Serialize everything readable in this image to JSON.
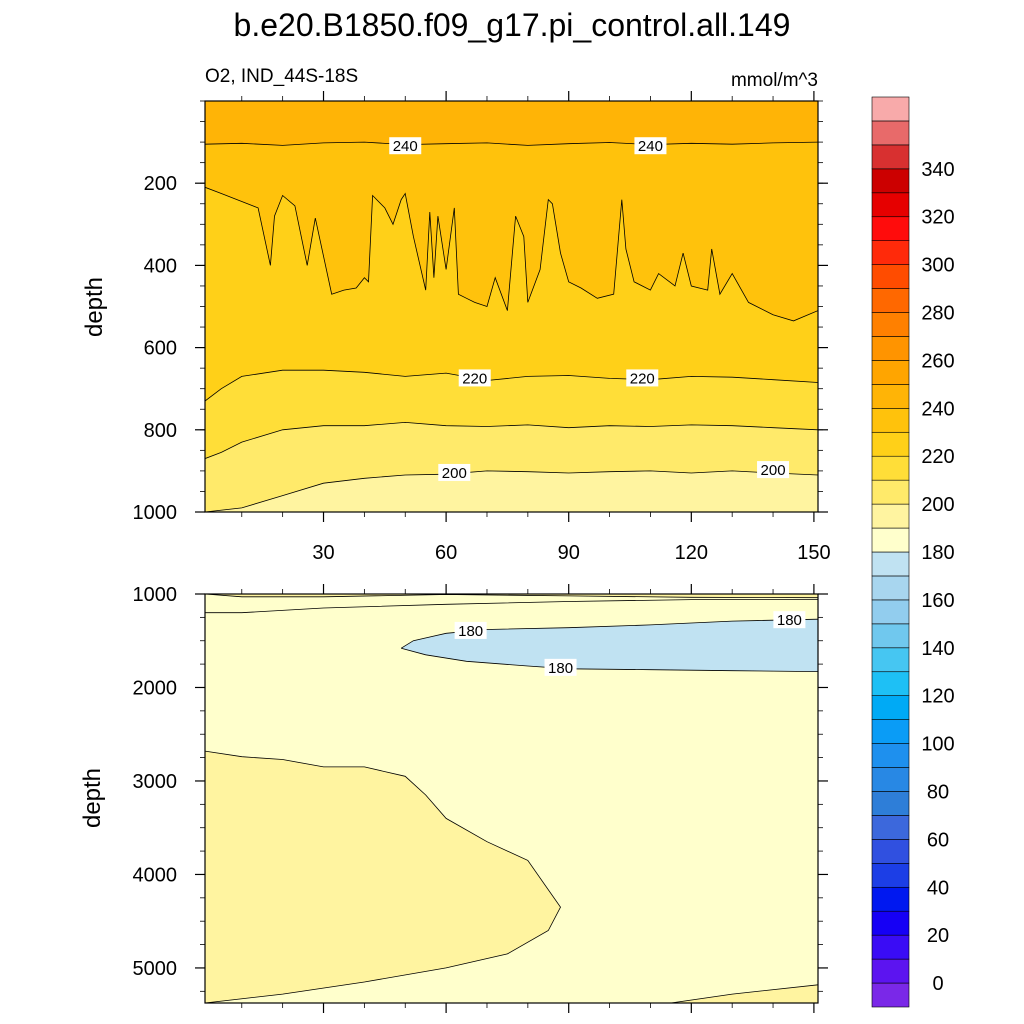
{
  "chart_data": {
    "type": "contour",
    "title": "b.e20.B1850.f09_g17.pi_control.all.149",
    "subtitle_left": "O2, IND_44S-18S",
    "subtitle_right": "mmol/m^3",
    "panels": [
      {
        "name": "upper",
        "ylabel": "depth",
        "xlim": [
          1,
          151
        ],
        "ylim": [
          1000,
          0
        ],
        "yticks": [
          200,
          400,
          600,
          800,
          1000
        ],
        "xticks": [
          30,
          60,
          90,
          120,
          150
        ],
        "contours": [
          {
            "level": 240,
            "x": [
              1,
              10,
              20,
              30,
              40,
              50,
              60,
              70,
              80,
              90,
              100,
              110,
              120,
              130,
              140,
              151
            ],
            "depth": [
              105,
              103,
              108,
              102,
              100,
              106,
              104,
              102,
              108,
              104,
              101,
              106,
              103,
              105,
              102,
              100
            ]
          },
          {
            "level": 230,
            "x": [
              1,
              5,
              14,
              17,
              18,
              20,
              23,
              26,
              28,
              32,
              35,
              38,
              40,
              41,
              42,
              45,
              47,
              49,
              50,
              52,
              55,
              56,
              57,
              58,
              60,
              62,
              63,
              65,
              67,
              70,
              72,
              75,
              77,
              79,
              80,
              83,
              85,
              86,
              88,
              90,
              93,
              97,
              101,
              103,
              104,
              106,
              110,
              112,
              116,
              118,
              120,
              124,
              125,
              127,
              130,
              134,
              140,
              145,
              151
            ],
            "depth": [
              210,
              225,
              260,
              400,
              280,
              230,
              255,
              400,
              285,
              470,
              460,
              455,
              430,
              440,
              230,
              260,
              300,
              240,
              225,
              330,
              460,
              270,
              430,
              280,
              410,
              260,
              470,
              480,
              490,
              500,
              430,
              510,
              280,
              330,
              490,
              410,
              240,
              250,
              370,
              440,
              455,
              480,
              470,
              240,
              360,
              440,
              460,
              420,
              450,
              370,
              450,
              460,
              360,
              470,
              420,
              490,
              520,
              535,
              510
            ]
          },
          {
            "level": 220,
            "x": [
              1,
              5,
              10,
              20,
              30,
              40,
              50,
              60,
              70,
              80,
              90,
              100,
              110,
              120,
              130,
              140,
              151
            ],
            "depth": [
              730,
              700,
              670,
              655,
              655,
              660,
              670,
              662,
              680,
              670,
              668,
              675,
              678,
              670,
              672,
              678,
              685
            ]
          },
          {
            "level": 210,
            "x": [
              1,
              5,
              10,
              20,
              30,
              40,
              50,
              60,
              70,
              80,
              90,
              100,
              110,
              120,
              130,
              140,
              151
            ],
            "depth": [
              870,
              855,
              830,
              800,
              790,
              790,
              782,
              790,
              792,
              788,
              795,
              790,
              792,
              788,
              790,
              795,
              800
            ]
          },
          {
            "level": 200,
            "x": [
              1,
              10,
              20,
              30,
              40,
              50,
              60,
              70,
              80,
              90,
              100,
              110,
              120,
              130,
              140,
              151
            ],
            "depth": [
              1000,
              990,
              960,
              930,
              918,
              910,
              908,
              900,
              902,
              905,
              902,
              900,
              905,
              900,
              905,
              910
            ]
          }
        ],
        "labels": [
          {
            "text": "240",
            "x": 50,
            "depth": 110
          },
          {
            "text": "240",
            "x": 110,
            "depth": 110
          },
          {
            "text": "220",
            "x": 67,
            "depth": 675
          },
          {
            "text": "220",
            "x": 108,
            "depth": 675
          },
          {
            "text": "200",
            "x": 62,
            "depth": 905
          },
          {
            "text": "200",
            "x": 140,
            "depth": 898
          }
        ]
      },
      {
        "name": "lower",
        "ylabel": "depth",
        "xlim": [
          1,
          151
        ],
        "ylim": [
          5375,
          1000
        ],
        "yticks": [
          1000,
          2000,
          3000,
          4000,
          5000
        ],
        "contours": [
          {
            "level": 190,
            "x": [
              1,
              10,
              30,
              60,
              90,
              120,
              151
            ],
            "depth": [
              1000,
              1030,
              1030,
              1005,
              1020,
              1035,
              1040
            ]
          },
          {
            "level": 190,
            "x": [
              1,
              10,
              30,
              60,
              90,
              120,
              151
            ],
            "depth": [
              1200,
              1200,
              1150,
              1110,
              1080,
              1060,
              1060
            ]
          },
          {
            "level": 180,
            "x": [
              151,
              130,
              110,
              90,
              70,
              60,
              52,
              49
            ],
            "depth": [
              1270,
              1290,
              1330,
              1360,
              1380,
              1420,
              1500,
              1580
            ]
          },
          {
            "level": 180,
            "x": [
              49,
              55,
              65,
              80,
              90,
              110,
              130,
              151
            ],
            "depth": [
              1580,
              1650,
              1720,
              1770,
              1800,
              1810,
              1820,
              1830
            ]
          },
          {
            "level": 190,
            "x": [
              1,
              10,
              20,
              30,
              40,
              50,
              55,
              60,
              70,
              80,
              88,
              85,
              75,
              60,
              40,
              20,
              1
            ],
            "depth": [
              2680,
              2740,
              2770,
              2850,
              2850,
              2950,
              3150,
              3400,
              3650,
              3850,
              4350,
              4600,
              4850,
              5000,
              5150,
              5280,
              5375
            ]
          },
          {
            "level": 190,
            "x": [
              115,
              130,
              151
            ],
            "depth": [
              5375,
              5280,
              5180
            ]
          }
        ],
        "labels": [
          {
            "text": "180",
            "x": 66,
            "depth": 1395
          },
          {
            "text": "180",
            "x": 144,
            "depth": 1280
          },
          {
            "text": "180",
            "x": 88,
            "depth": 1790
          }
        ]
      }
    ],
    "colorbar": {
      "levels": [
        0,
        10,
        20,
        30,
        40,
        50,
        60,
        70,
        80,
        90,
        100,
        110,
        120,
        130,
        140,
        150,
        160,
        170,
        180,
        190,
        200,
        210,
        220,
        230,
        240,
        250,
        260,
        270,
        280,
        290,
        300,
        310,
        320,
        330,
        340,
        350
      ],
      "tick_labels": [
        "0",
        "20",
        "40",
        "60",
        "80",
        "100",
        "120",
        "140",
        "160",
        "180",
        "200",
        "220",
        "240",
        "260",
        "280",
        "300",
        "320",
        "340"
      ],
      "colors": [
        "#7a28e8",
        "#5c14f0",
        "#3a0cf5",
        "#1600f5",
        "#0018f0",
        "#1c3ee6",
        "#3050e0",
        "#3c68dc",
        "#2e7ed8",
        "#2888e4",
        "#1e90ee",
        "#0a9cf6",
        "#00aaf5",
        "#1ec0f5",
        "#46c6f2",
        "#70c8ee",
        "#92cdee",
        "#a8d6ef",
        "#c0e2f2",
        "#ffffcc",
        "#fff4a0",
        "#ffea6a",
        "#ffde38",
        "#ffd018",
        "#ffc20c",
        "#ffb406",
        "#ffa500",
        "#ff9400",
        "#ff8000",
        "#ff6800",
        "#ff4c00",
        "#ff2a0a",
        "#ff0c0c",
        "#e60000",
        "#cc0000",
        "#d83030",
        "#e86a6a",
        "#f8aaaa"
      ]
    }
  }
}
